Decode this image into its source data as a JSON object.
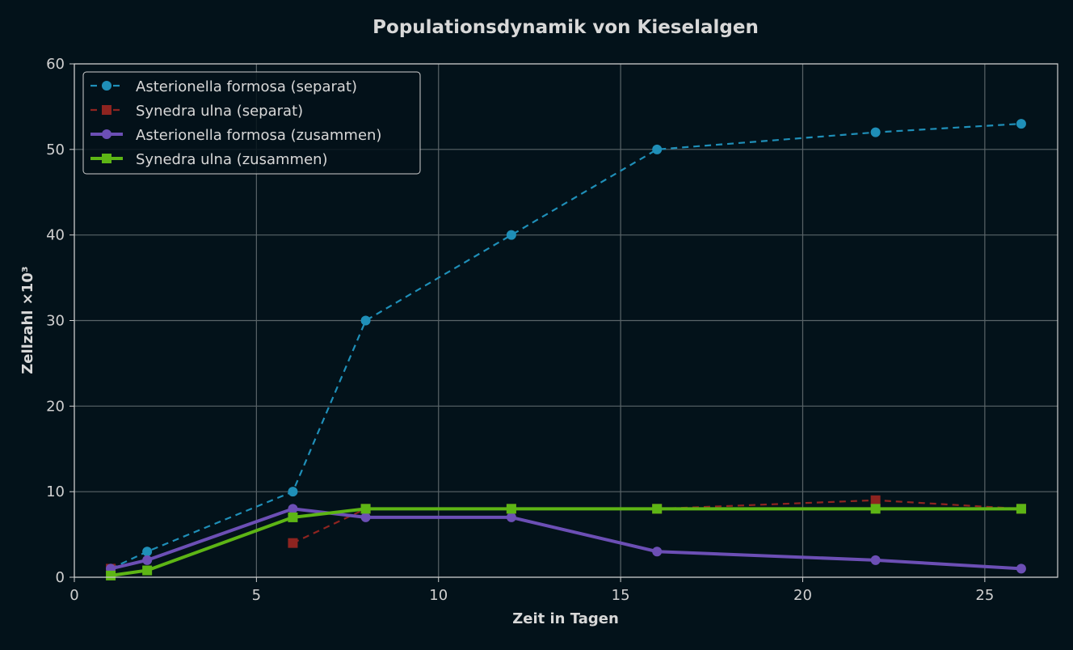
{
  "chart_data": {
    "type": "line",
    "title": "Populationsdynamik von Kieselalgen",
    "xlabel": "Zeit in Tagen",
    "ylabel": "Zellzahl ×10³",
    "xlim": [
      0,
      27
    ],
    "ylim": [
      0,
      60
    ],
    "xticks": [
      0,
      5,
      10,
      15,
      20,
      25
    ],
    "yticks": [
      0,
      10,
      20,
      30,
      40,
      50,
      60
    ],
    "grid": true,
    "legend_position": "top-left",
    "x": [
      1,
      2,
      6,
      8,
      12,
      16,
      22,
      26
    ],
    "series": [
      {
        "name": "Asterionella formosa (separat)",
        "values": [
          1,
          3,
          10,
          30,
          40,
          50,
          52,
          53
        ],
        "color": "#1f8fb8",
        "style": "dashed",
        "marker": "circle"
      },
      {
        "name": "Synedra ulna (separat)",
        "values": [
          1,
          null,
          4,
          8,
          8,
          8,
          9,
          8
        ],
        "color": "#8e2420",
        "style": "dashed",
        "marker": "square"
      },
      {
        "name": "Asterionella formosa (zusammen)",
        "values": [
          1,
          2,
          8,
          7,
          7,
          3,
          2,
          1
        ],
        "color": "#6c4fb5",
        "style": "solid",
        "marker": "circle"
      },
      {
        "name": "Synedra ulna (zusammen)",
        "values": [
          0.2,
          0.8,
          7,
          8,
          8,
          8,
          8,
          8
        ],
        "color": "#5db515",
        "style": "solid",
        "marker": "square"
      }
    ]
  }
}
